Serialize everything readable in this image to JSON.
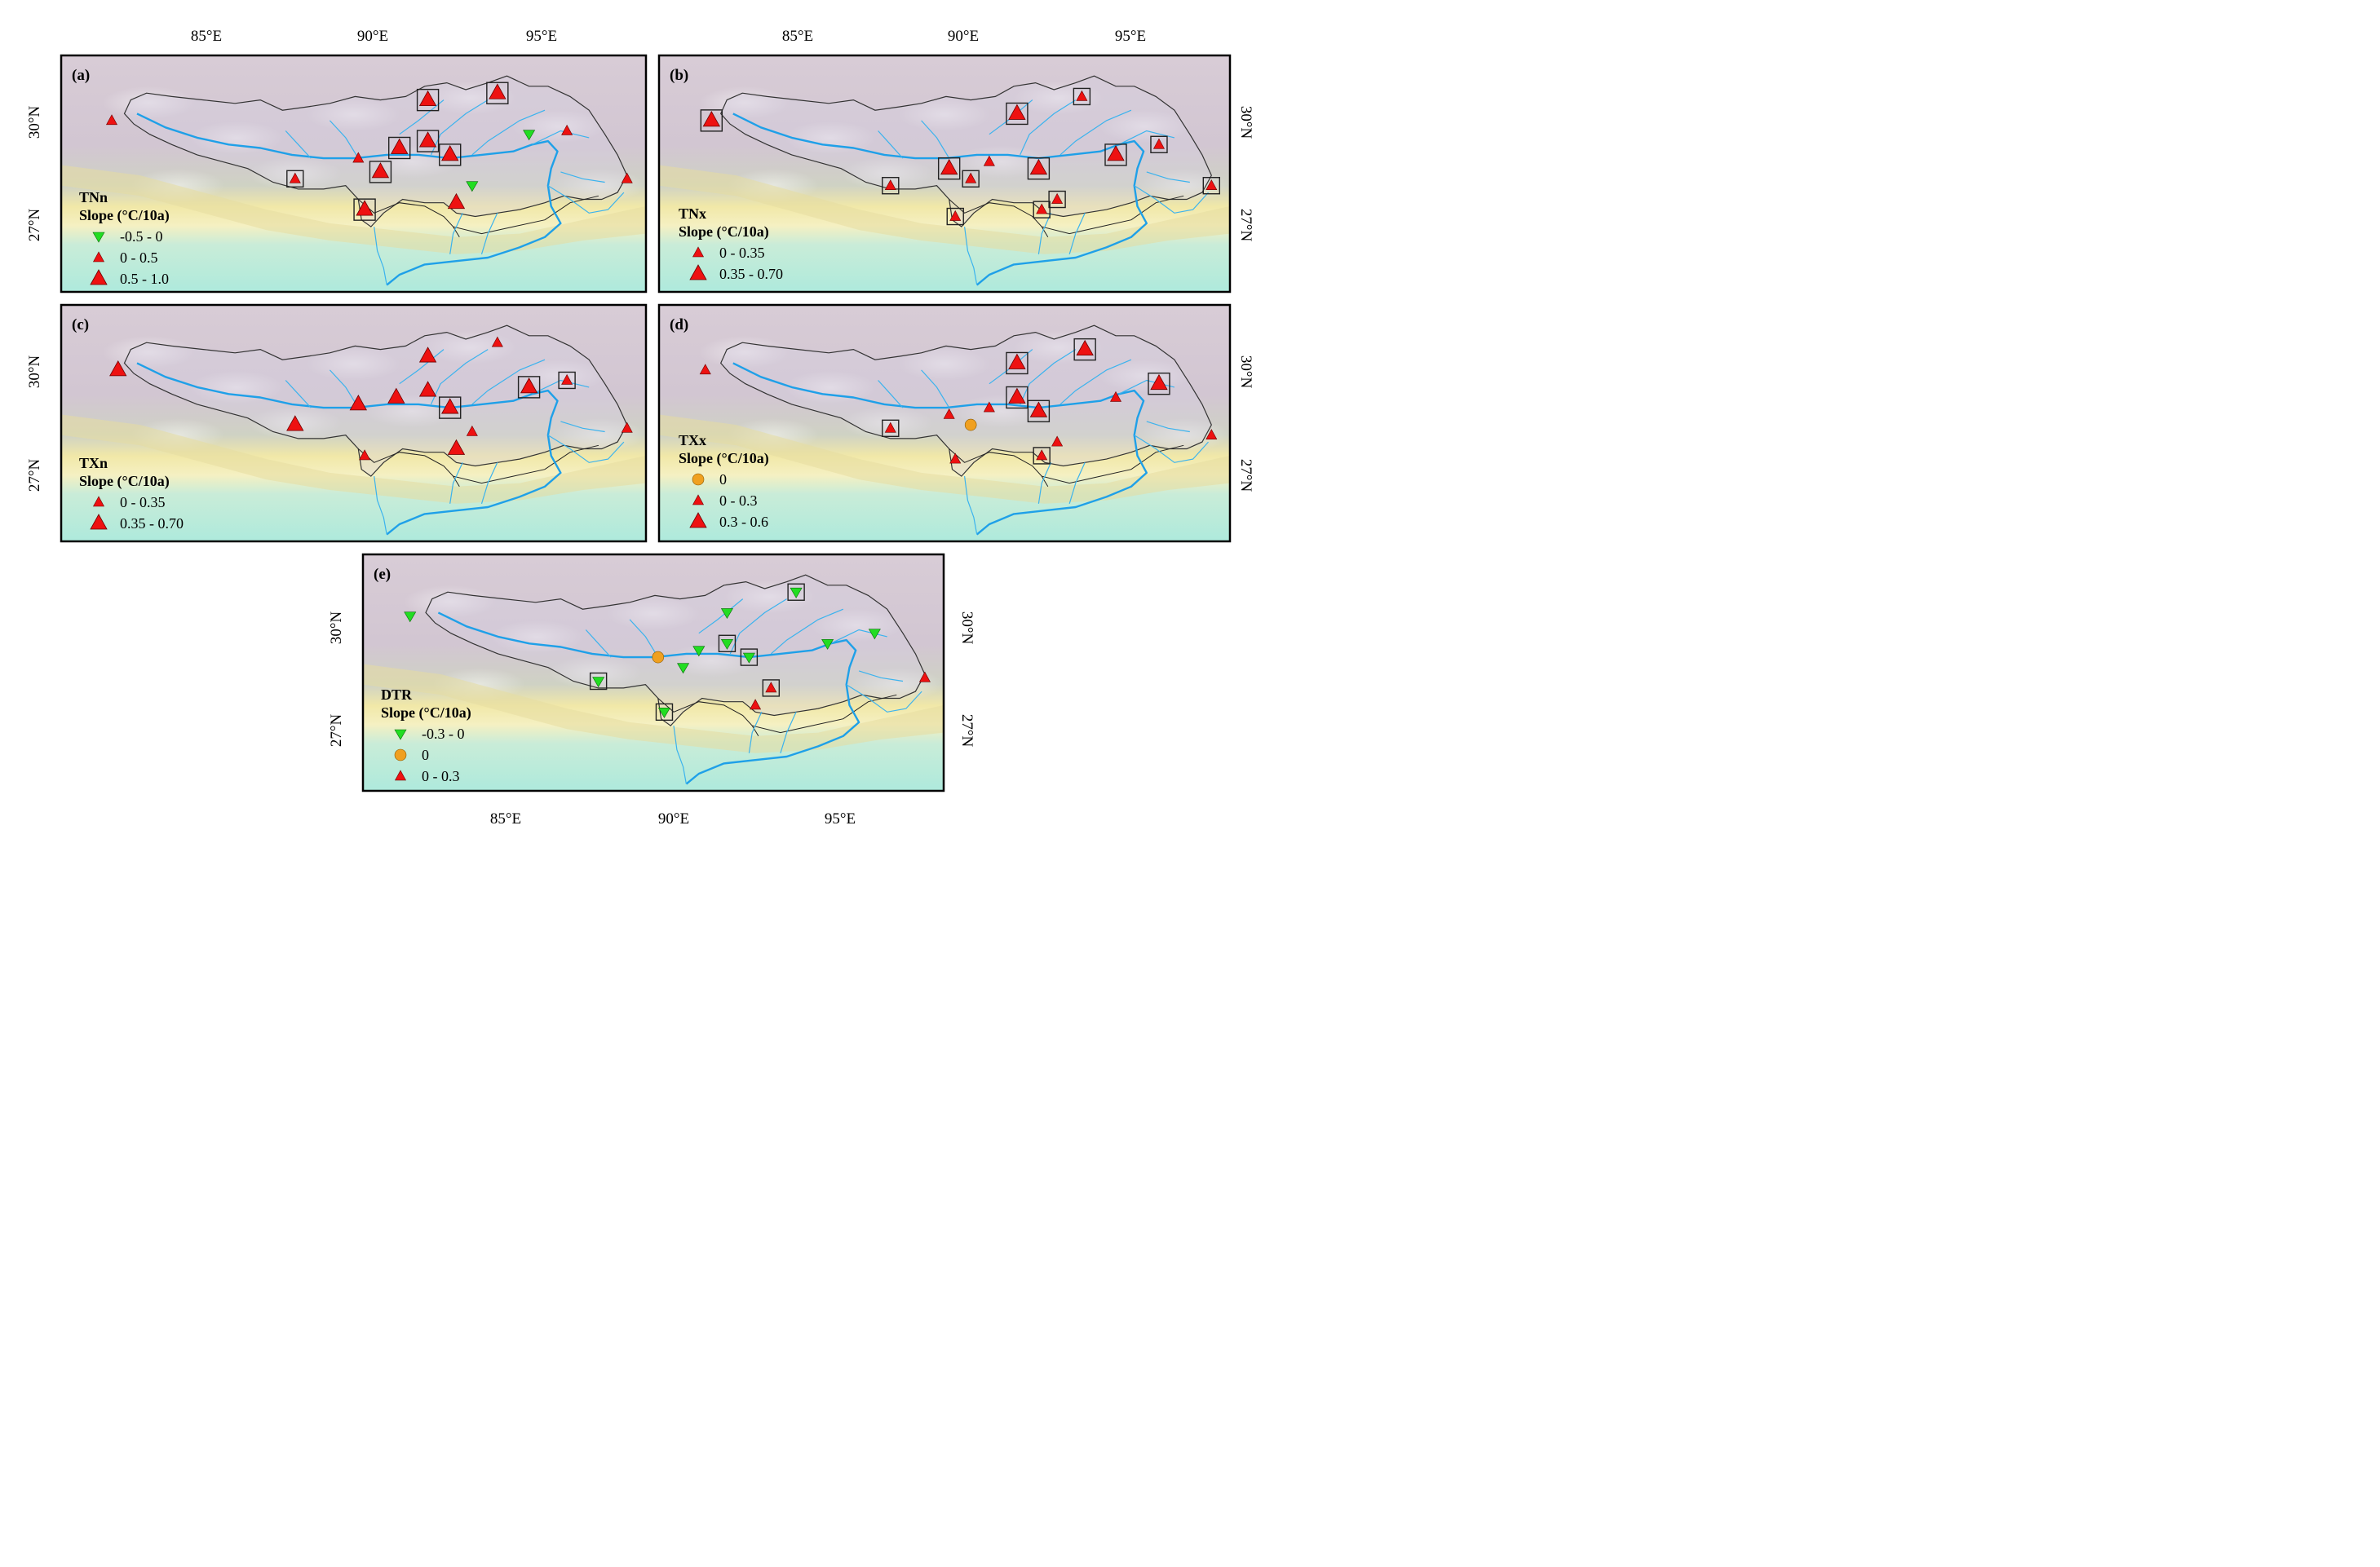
{
  "figure": {
    "panels": [
      {
        "id": "a",
        "letter": "(a)",
        "index": "TNn",
        "slope_label": "Slope (°C/10a)",
        "legend": [
          {
            "range": "-0.5 - 0",
            "symbol": "triangle-down",
            "color": "#22dd22"
          },
          {
            "range": "0 - 0.5",
            "symbol": "triangle-up-small",
            "color": "#ee1111"
          },
          {
            "range": "0.5 - 1.0",
            "symbol": "triangle-up-large",
            "color": "#ee1111"
          }
        ],
        "top_ticks": [
          "85°E",
          "90°E",
          "95°E"
        ],
        "left_ticks": [
          "30°N",
          "27°N"
        ]
      },
      {
        "id": "b",
        "letter": "(b)",
        "index": "TNx",
        "slope_label": "Slope (°C/10a)",
        "legend": [
          {
            "range": "0 - 0.35",
            "symbol": "triangle-up-small",
            "color": "#ee1111"
          },
          {
            "range": "0.35 - 0.70",
            "symbol": "triangle-up-large",
            "color": "#ee1111"
          }
        ],
        "top_ticks": [
          "85°E",
          "90°E",
          "95°E"
        ],
        "right_ticks": [
          "30°N",
          "27°N"
        ]
      },
      {
        "id": "c",
        "letter": "(c)",
        "index": "TXn",
        "slope_label": "Slope (°C/10a)",
        "legend": [
          {
            "range": "0 - 0.35",
            "symbol": "triangle-up-small",
            "color": "#ee1111"
          },
          {
            "range": "0.35 - 0.70",
            "symbol": "triangle-up-large",
            "color": "#ee1111"
          }
        ],
        "left_ticks": [
          "30°N",
          "27°N"
        ]
      },
      {
        "id": "d",
        "letter": "(d)",
        "index": "TXx",
        "slope_label": "Slope (°C/10a)",
        "legend": [
          {
            "range": "0",
            "symbol": "circle",
            "color": "#f0a020"
          },
          {
            "range": "0 - 0.3",
            "symbol": "triangle-up-small",
            "color": "#ee1111"
          },
          {
            "range": "0.3 - 0.6",
            "symbol": "triangle-up-large",
            "color": "#ee1111"
          }
        ],
        "right_ticks": [
          "30°N",
          "27°N"
        ]
      },
      {
        "id": "e",
        "letter": "(e)",
        "index": "DTR",
        "slope_label": "Slope (°C/10a)",
        "legend": [
          {
            "range": "-0.3 - 0",
            "symbol": "triangle-down",
            "color": "#22dd22"
          },
          {
            "range": "0",
            "symbol": "circle",
            "color": "#f0a020"
          },
          {
            "range": "0 - 0.3",
            "symbol": "triangle-up-small",
            "color": "#ee1111"
          }
        ],
        "bottom_ticks": [
          "85°E",
          "90°E",
          "95°E"
        ],
        "left_ticks": [
          "30°N",
          "27°N"
        ],
        "right_ticks": [
          "30°N",
          "27°N"
        ]
      }
    ],
    "stations": {
      "a": [
        {
          "lon": 81.1,
          "lat": 30.3,
          "sym": "S",
          "box": false
        },
        {
          "lon": 86.9,
          "lat": 28.6,
          "sym": "S",
          "box": true
        },
        {
          "lon": 88.9,
          "lat": 29.2,
          "sym": "S",
          "box": false
        },
        {
          "lon": 89.1,
          "lat": 27.7,
          "sym": "L",
          "box": true
        },
        {
          "lon": 89.6,
          "lat": 28.8,
          "sym": "L",
          "box": true
        },
        {
          "lon": 90.2,
          "lat": 29.5,
          "sym": "L",
          "box": true
        },
        {
          "lon": 91.1,
          "lat": 30.9,
          "sym": "L",
          "box": true
        },
        {
          "lon": 91.1,
          "lat": 29.7,
          "sym": "L",
          "box": true
        },
        {
          "lon": 91.8,
          "lat": 29.3,
          "sym": "L",
          "box": true
        },
        {
          "lon": 92.0,
          "lat": 27.9,
          "sym": "L",
          "box": false
        },
        {
          "lon": 92.5,
          "lat": 28.4,
          "sym": "D",
          "box": false
        },
        {
          "lon": 93.3,
          "lat": 31.1,
          "sym": "L",
          "box": true
        },
        {
          "lon": 94.3,
          "lat": 29.9,
          "sym": "D",
          "box": false
        },
        {
          "lon": 95.5,
          "lat": 30.0,
          "sym": "S",
          "box": false
        },
        {
          "lon": 97.4,
          "lat": 28.6,
          "sym": "S",
          "box": false
        }
      ],
      "b": [
        {
          "lon": 81.2,
          "lat": 30.3,
          "sym": "L",
          "box": true
        },
        {
          "lon": 87.0,
          "lat": 28.4,
          "sym": "S",
          "box": true
        },
        {
          "lon": 88.9,
          "lat": 28.9,
          "sym": "L",
          "box": true
        },
        {
          "lon": 89.1,
          "lat": 27.5,
          "sym": "S",
          "box": true
        },
        {
          "lon": 89.6,
          "lat": 28.6,
          "sym": "S",
          "box": true
        },
        {
          "lon": 90.2,
          "lat": 29.1,
          "sym": "S",
          "box": false
        },
        {
          "lon": 91.1,
          "lat": 30.5,
          "sym": "L",
          "box": true
        },
        {
          "lon": 91.8,
          "lat": 28.9,
          "sym": "L",
          "box": true
        },
        {
          "lon": 91.9,
          "lat": 27.7,
          "sym": "S",
          "box": true
        },
        {
          "lon": 92.4,
          "lat": 28.0,
          "sym": "S",
          "box": true
        },
        {
          "lon": 93.2,
          "lat": 31.0,
          "sym": "S",
          "box": true
        },
        {
          "lon": 94.3,
          "lat": 29.3,
          "sym": "L",
          "box": true
        },
        {
          "lon": 95.7,
          "lat": 29.6,
          "sym": "S",
          "box": true
        },
        {
          "lon": 97.4,
          "lat": 28.4,
          "sym": "S",
          "box": true
        }
      ],
      "c": [
        {
          "lon": 81.3,
          "lat": 30.3,
          "sym": "L",
          "box": false
        },
        {
          "lon": 86.9,
          "lat": 28.7,
          "sym": "L",
          "box": false
        },
        {
          "lon": 88.9,
          "lat": 29.3,
          "sym": "L",
          "box": false
        },
        {
          "lon": 89.1,
          "lat": 27.8,
          "sym": "S",
          "box": false
        },
        {
          "lon": 90.1,
          "lat": 29.5,
          "sym": "L",
          "box": false
        },
        {
          "lon": 91.1,
          "lat": 30.7,
          "sym": "L",
          "box": false
        },
        {
          "lon": 91.1,
          "lat": 29.7,
          "sym": "L",
          "box": false
        },
        {
          "lon": 91.8,
          "lat": 29.2,
          "sym": "L",
          "box": true
        },
        {
          "lon": 92.0,
          "lat": 28.0,
          "sym": "L",
          "box": false
        },
        {
          "lon": 92.5,
          "lat": 28.5,
          "sym": "S",
          "box": false
        },
        {
          "lon": 93.3,
          "lat": 31.1,
          "sym": "S",
          "box": false
        },
        {
          "lon": 94.3,
          "lat": 29.8,
          "sym": "L",
          "box": true
        },
        {
          "lon": 95.5,
          "lat": 30.0,
          "sym": "S",
          "box": true
        },
        {
          "lon": 97.4,
          "lat": 28.6,
          "sym": "S",
          "box": false
        }
      ],
      "d": [
        {
          "lon": 81.0,
          "lat": 30.3,
          "sym": "S",
          "box": false
        },
        {
          "lon": 87.0,
          "lat": 28.6,
          "sym": "S",
          "box": true
        },
        {
          "lon": 88.9,
          "lat": 29.0,
          "sym": "S",
          "box": false
        },
        {
          "lon": 89.1,
          "lat": 27.7,
          "sym": "S",
          "box": false
        },
        {
          "lon": 89.6,
          "lat": 28.7,
          "sym": "C",
          "box": false
        },
        {
          "lon": 90.2,
          "lat": 29.2,
          "sym": "S",
          "box": false
        },
        {
          "lon": 91.1,
          "lat": 30.5,
          "sym": "L",
          "box": true
        },
        {
          "lon": 91.1,
          "lat": 29.5,
          "sym": "L",
          "box": true
        },
        {
          "lon": 91.8,
          "lat": 29.1,
          "sym": "L",
          "box": true
        },
        {
          "lon": 91.9,
          "lat": 27.8,
          "sym": "S",
          "box": true
        },
        {
          "lon": 92.4,
          "lat": 28.2,
          "sym": "S",
          "box": false
        },
        {
          "lon": 93.3,
          "lat": 30.9,
          "sym": "L",
          "box": true
        },
        {
          "lon": 94.3,
          "lat": 29.5,
          "sym": "S",
          "box": false
        },
        {
          "lon": 95.7,
          "lat": 29.9,
          "sym": "L",
          "box": true
        },
        {
          "lon": 97.4,
          "lat": 28.4,
          "sym": "S",
          "box": false
        }
      ],
      "e": [
        {
          "lon": 81.0,
          "lat": 30.4,
          "sym": "D",
          "box": false
        },
        {
          "lon": 87.0,
          "lat": 28.5,
          "sym": "D",
          "box": true
        },
        {
          "lon": 88.9,
          "lat": 29.2,
          "sym": "C",
          "box": false
        },
        {
          "lon": 89.1,
          "lat": 27.6,
          "sym": "D",
          "box": true
        },
        {
          "lon": 89.7,
          "lat": 28.9,
          "sym": "D",
          "box": false
        },
        {
          "lon": 90.2,
          "lat": 29.4,
          "sym": "D",
          "box": false
        },
        {
          "lon": 91.1,
          "lat": 30.5,
          "sym": "D",
          "box": false
        },
        {
          "lon": 91.1,
          "lat": 29.6,
          "sym": "D",
          "box": true
        },
        {
          "lon": 91.8,
          "lat": 29.2,
          "sym": "D",
          "box": true
        },
        {
          "lon": 92.0,
          "lat": 27.8,
          "sym": "S",
          "box": false
        },
        {
          "lon": 92.5,
          "lat": 28.3,
          "sym": "S",
          "box": true
        },
        {
          "lon": 93.3,
          "lat": 31.1,
          "sym": "D",
          "box": true
        },
        {
          "lon": 94.3,
          "lat": 29.6,
          "sym": "D",
          "box": false
        },
        {
          "lon": 95.8,
          "lat": 29.9,
          "sym": "D",
          "box": false
        },
        {
          "lon": 97.4,
          "lat": 28.6,
          "sym": "S",
          "box": false
        }
      ]
    }
  }
}
